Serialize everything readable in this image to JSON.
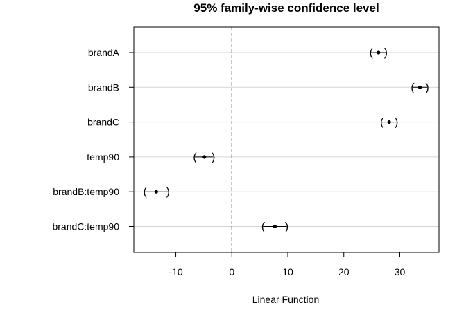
{
  "chart_data": {
    "type": "forest",
    "title": "95% family-wise confidence level",
    "xlabel": "Linear Function",
    "ylabel": "",
    "xlim": [
      -17.5,
      37
    ],
    "xticks": [
      -10,
      0,
      10,
      20,
      30
    ],
    "xtick_labels": [
      "-10",
      "0",
      "10",
      "20",
      "30"
    ],
    "reference_line": 0,
    "grid": "horizontal",
    "categories": [
      "brandA",
      "brandB",
      "brandC",
      "temp90",
      "brandB:temp90",
      "brandC:temp90"
    ],
    "estimates": [
      26.2,
      33.6,
      28.1,
      -4.9,
      -13.5,
      7.7
    ],
    "lower": [
      24.9,
      32.3,
      26.8,
      -6.6,
      -15.5,
      5.6
    ],
    "upper": [
      27.5,
      34.9,
      29.4,
      -3.3,
      -11.4,
      9.8
    ]
  }
}
